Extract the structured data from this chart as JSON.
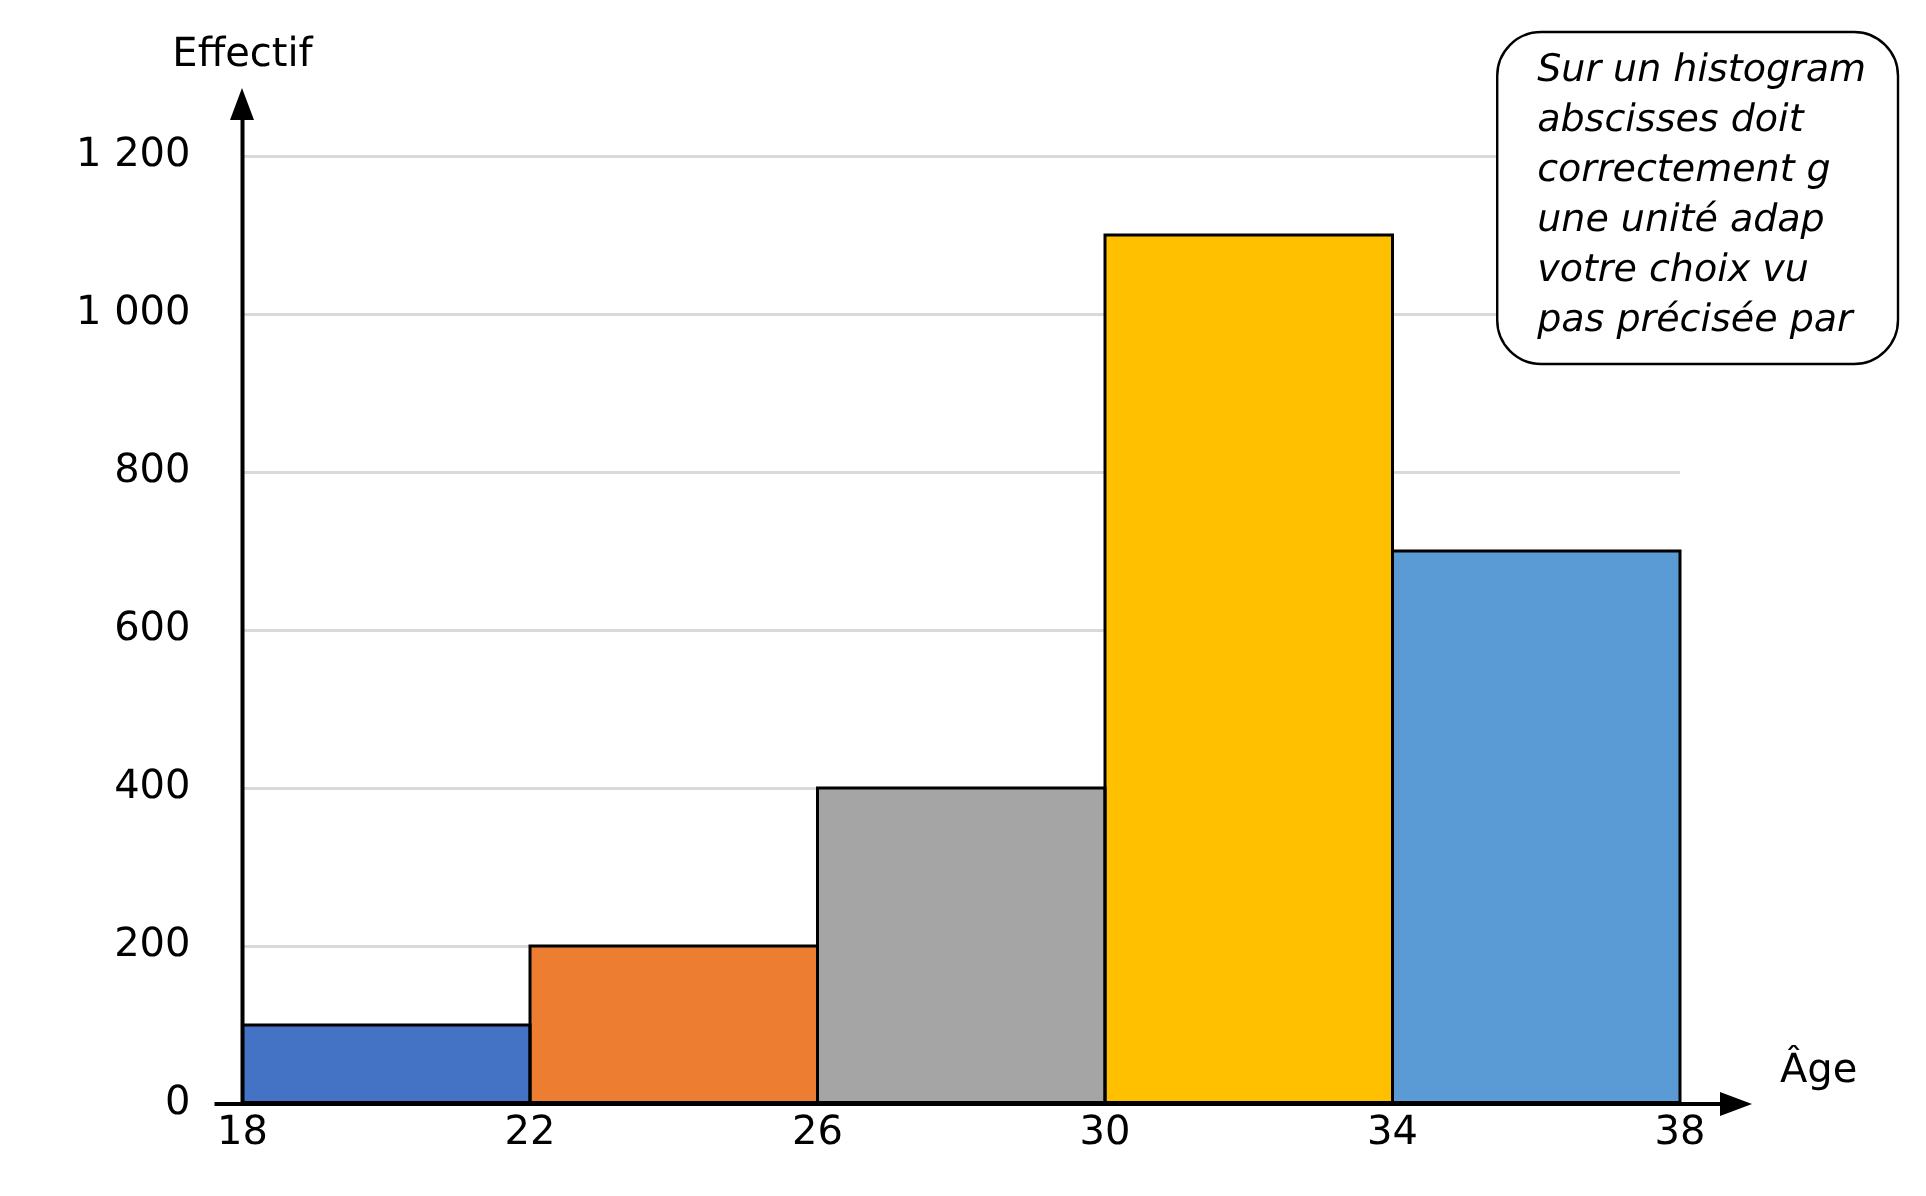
{
  "chart_data": {
    "type": "histogram",
    "xlabel": "Âge",
    "ylabel": "Effectif",
    "bins": [
      18,
      22,
      26,
      30,
      34,
      38
    ],
    "values": [
      100,
      200,
      400,
      1100,
      700
    ],
    "colors": [
      "#4472c4",
      "#ed7d31",
      "#a5a5a5",
      "#ffc000",
      "#5b9bd5"
    ],
    "xlim": [
      18,
      38
    ],
    "xticks": [
      18,
      22,
      26,
      30,
      34,
      38
    ],
    "ylim": [
      0,
      1200
    ],
    "yticks": [
      0,
      200,
      400,
      600,
      800,
      {
        "value": 1000,
        "label": "1 000"
      },
      {
        "value": 1200,
        "label": "1 200"
      }
    ],
    "grid": "y",
    "legend": false,
    "annotations": [
      "Sur un histogram",
      "abscisses doit",
      "correctement g",
      "une unité adap",
      "votre choix vu",
      "pas précisée par"
    ]
  }
}
